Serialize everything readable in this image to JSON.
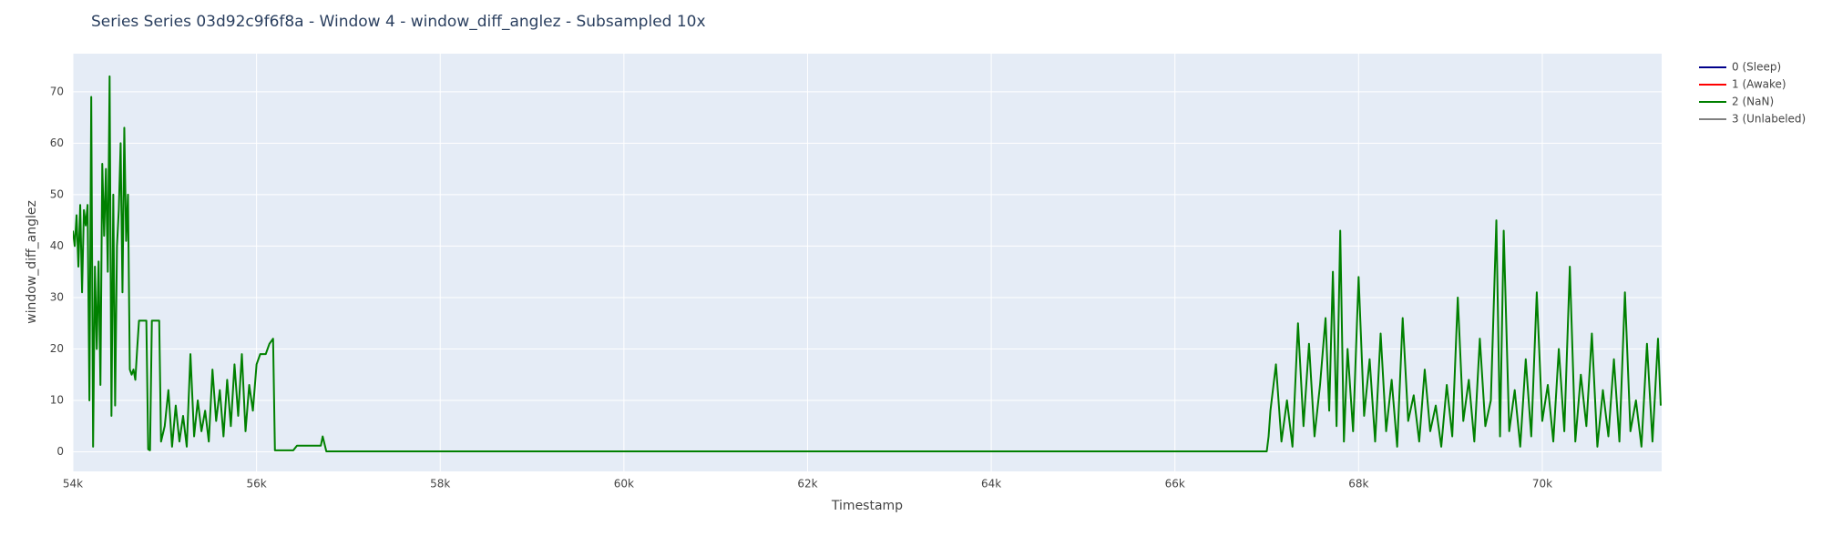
{
  "chart_data": {
    "type": "line",
    "title": "Series Series 03d92c9f6f8a - Window 4 - window_diff_anglez - Subsampled 10x",
    "x_label": "Timestamp",
    "y_label": "window_diff_anglez",
    "xlim": [
      54000,
      71300
    ],
    "ylim": [
      -3.8,
      77.4
    ],
    "xticks": [
      {
        "value": 54000,
        "label": "54k"
      },
      {
        "value": 56000,
        "label": "56k"
      },
      {
        "value": 58000,
        "label": "58k"
      },
      {
        "value": 60000,
        "label": "60k"
      },
      {
        "value": 62000,
        "label": "62k"
      },
      {
        "value": 64000,
        "label": "64k"
      },
      {
        "value": 66000,
        "label": "66k"
      },
      {
        "value": 68000,
        "label": "68k"
      },
      {
        "value": 70000,
        "label": "70k"
      }
    ],
    "yticks": [
      0,
      10,
      20,
      30,
      40,
      50,
      60,
      70
    ],
    "grid": true,
    "legend": "outside-right",
    "series": [
      {
        "name": "0 (Sleep)",
        "color": "#00008b",
        "x": [],
        "values": []
      },
      {
        "name": "1 (Awake)",
        "color": "#ff0000",
        "x": [],
        "values": []
      },
      {
        "name": "2 (NaN)",
        "color": "#008000",
        "x": [
          54000,
          54020,
          54040,
          54060,
          54080,
          54100,
          54120,
          54140,
          54160,
          54180,
          54200,
          54220,
          54240,
          54260,
          54280,
          54300,
          54320,
          54340,
          54360,
          54380,
          54400,
          54420,
          54440,
          54460,
          54480,
          54500,
          54520,
          54540,
          54560,
          54580,
          54600,
          54620,
          54640,
          54660,
          54680,
          54700,
          54720,
          54800,
          54820,
          54840,
          54860,
          54940,
          54960,
          55000,
          55040,
          55080,
          55120,
          55160,
          55200,
          55240,
          55280,
          55320,
          55360,
          55400,
          55440,
          55480,
          55520,
          55560,
          55600,
          55640,
          55680,
          55720,
          55760,
          55800,
          55840,
          55880,
          55920,
          55960,
          56000,
          56040,
          56100,
          56140,
          56180,
          56200,
          56400,
          56440,
          56700,
          56720,
          56760,
          67000,
          67020,
          67040,
          67100,
          67160,
          67220,
          67280,
          67340,
          67400,
          67460,
          67520,
          67580,
          67640,
          67680,
          67720,
          67760,
          67800,
          67840,
          67880,
          67940,
          68000,
          68060,
          68120,
          68180,
          68240,
          68300,
          68360,
          68420,
          68480,
          68540,
          68600,
          68660,
          68720,
          68780,
          68840,
          68900,
          68960,
          69020,
          69080,
          69140,
          69200,
          69260,
          69320,
          69380,
          69440,
          69500,
          69540,
          69580,
          69640,
          69700,
          69760,
          69820,
          69880,
          69940,
          70000,
          70060,
          70120,
          70180,
          70240,
          70300,
          70360,
          70420,
          70480,
          70540,
          70600,
          70660,
          70720,
          70780,
          70840,
          70900,
          70960,
          71020,
          71080,
          71140,
          71200,
          71260,
          71290
        ],
        "values": [
          43,
          40,
          46,
          36,
          48,
          31,
          47,
          44,
          48,
          10,
          69,
          1,
          36,
          20,
          37,
          13,
          56,
          42,
          55,
          35,
          73,
          7,
          50,
          9,
          40,
          47,
          60,
          31,
          63,
          41,
          50,
          16,
          15,
          16,
          14,
          20,
          25.5,
          25.5,
          0.5,
          0.3,
          25.5,
          25.5,
          2,
          5,
          12,
          1,
          9,
          2,
          7,
          1,
          19,
          3,
          10,
          4,
          8,
          2,
          16,
          6,
          12,
          3,
          14,
          5,
          17,
          7,
          19,
          4,
          13,
          8,
          17,
          19,
          19,
          21,
          22,
          0.3,
          0.3,
          1.2,
          1.2,
          3,
          0.1,
          0.1,
          3,
          8,
          17,
          2,
          10,
          1,
          25,
          5,
          21,
          3,
          13,
          26,
          8,
          35,
          5,
          43,
          2,
          20,
          4,
          34,
          7,
          18,
          2,
          23,
          4,
          14,
          1,
          26,
          6,
          11,
          2,
          16,
          4,
          9,
          1,
          13,
          3,
          30,
          6,
          14,
          2,
          22,
          5,
          10,
          45,
          3,
          43,
          4,
          12,
          1,
          18,
          3,
          31,
          6,
          13,
          2,
          20,
          4,
          36,
          2,
          15,
          5,
          23,
          1,
          12,
          3,
          18,
          2,
          31,
          4,
          10,
          1,
          21,
          2,
          22,
          9
        ]
      },
      {
        "name": "3 (Unlabeled)",
        "color": "#808080",
        "x": [],
        "values": []
      }
    ]
  }
}
